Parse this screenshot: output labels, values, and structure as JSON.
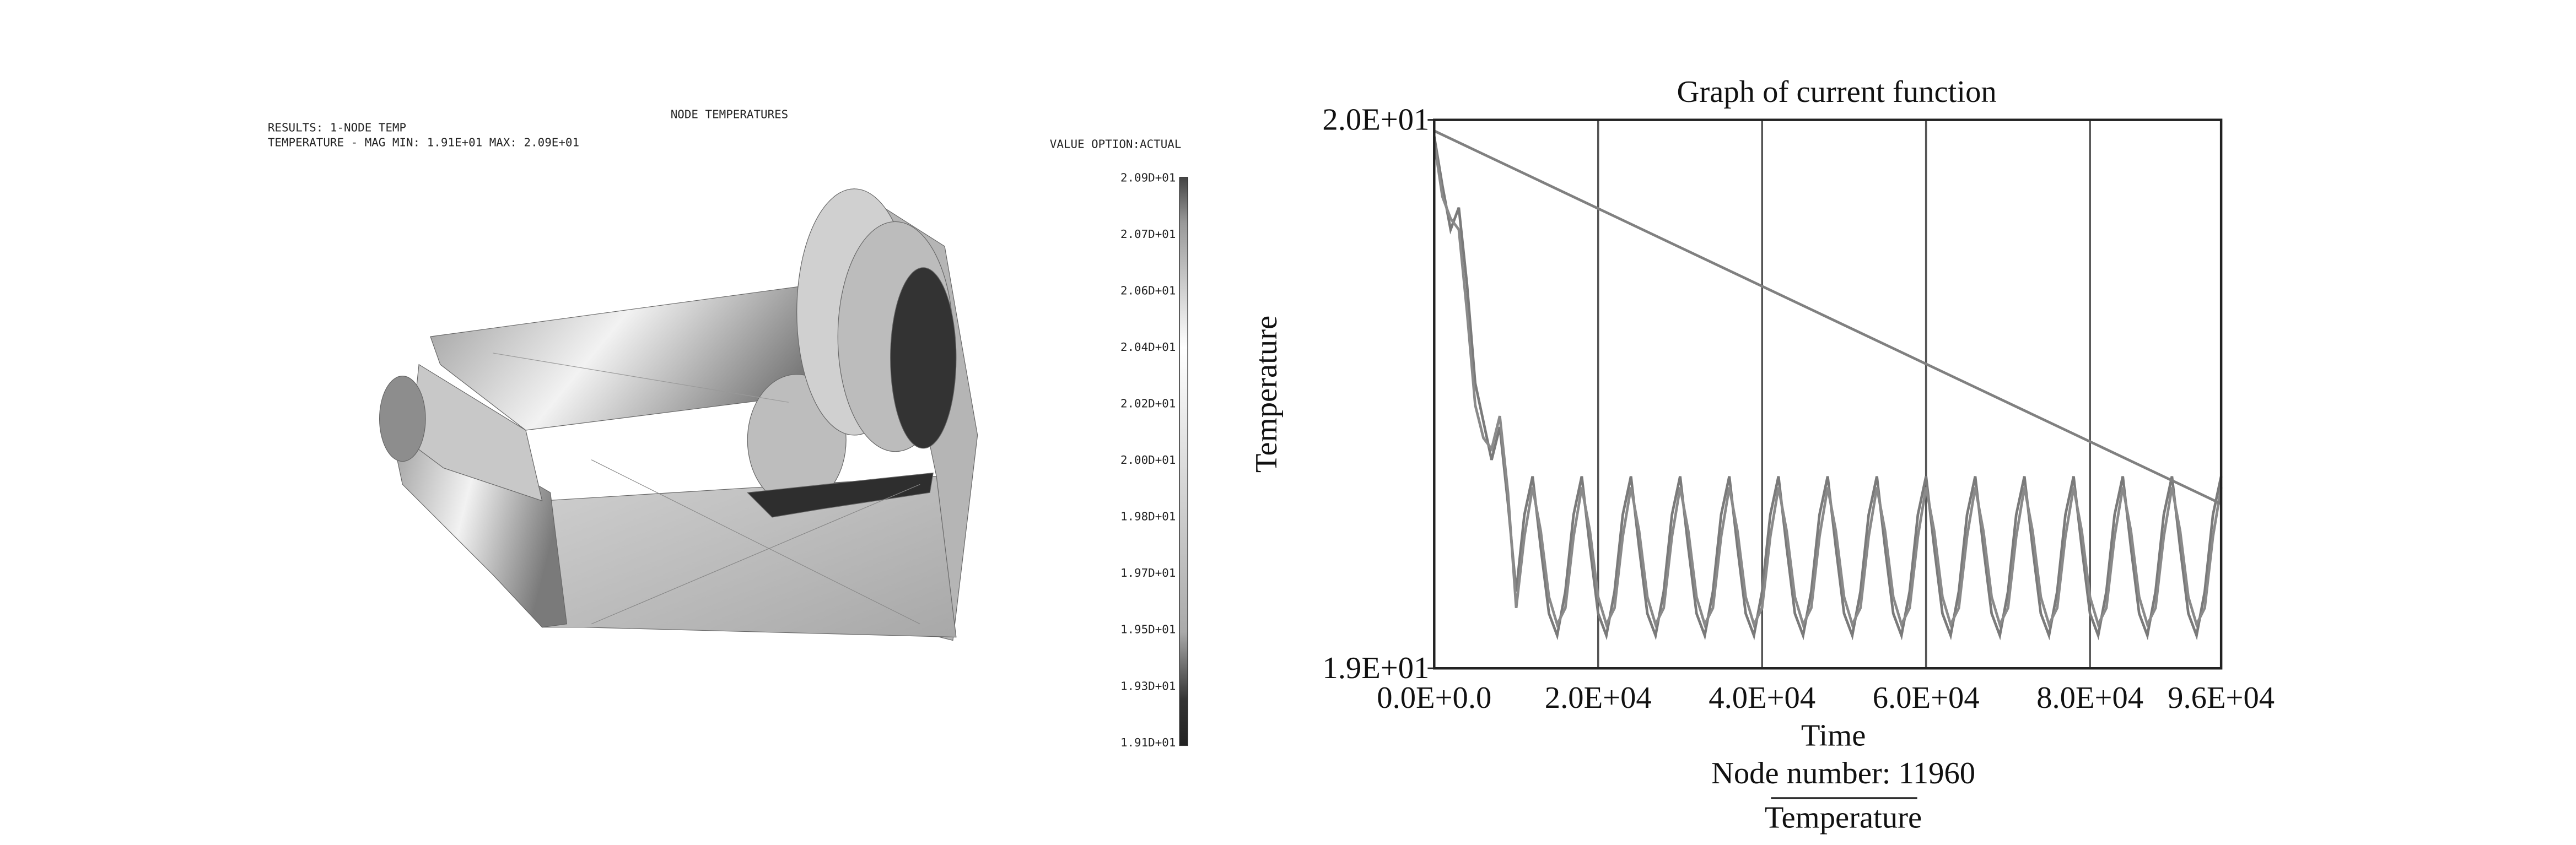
{
  "fem_view": {
    "title": "NODE TEMPERATURES",
    "results_line": "RESULTS: 1-NODE TEMP",
    "range_line": "TEMPERATURE - MAG MIN: 1.91E+01 MAX: 2.09E+01",
    "value_option": "VALUE OPTION:ACTUAL",
    "colorbar_labels": [
      "2.09D+01",
      "2.07D+01",
      "2.06D+01",
      "2.04D+01",
      "2.02D+01",
      "2.00D+01",
      "1.98D+01",
      "1.97D+01",
      "1.95D+01",
      "1.93D+01",
      "1.91D+01"
    ]
  },
  "chart_data": {
    "type": "line",
    "title": "Graph of current function",
    "x_label": "Time",
    "y_label": "Temperature",
    "footer": "Node number: 11960",
    "xlim": [
      0,
      96000
    ],
    "xticks": [
      {
        "value": 0,
        "label": "0.0E+0.0"
      },
      {
        "value": 20000,
        "label": "2.0E+04"
      },
      {
        "value": 40000,
        "label": "4.0E+04"
      },
      {
        "value": 60000,
        "label": "6.0E+04"
      },
      {
        "value": 80000,
        "label": "8.0E+04"
      },
      {
        "value": 96000,
        "label": "9.6E+04"
      }
    ],
    "ylim": [
      19,
      20
    ],
    "yticks": [
      {
        "value": 19,
        "label": "1.9E+01"
      },
      {
        "value": 20,
        "label": "2.0E+01"
      }
    ],
    "xgrid": true,
    "series": [
      {
        "name": "Temperature",
        "color": "#7a7a7a",
        "x": [
          0,
          1000,
          2000,
          3000,
          4000,
          5000,
          6000,
          7000,
          8000,
          9000,
          10000,
          11000,
          12000,
          13000,
          14000,
          15000,
          16000,
          17000,
          18000,
          19000,
          20000,
          21000,
          22000,
          23000,
          24000,
          25000,
          26000,
          27000,
          28000,
          29000,
          30000,
          31000,
          32000,
          33000,
          34000,
          35000,
          36000,
          37000,
          38000,
          39000,
          40000,
          41000,
          42000,
          43000,
          44000,
          45000,
          46000,
          47000,
          48000,
          49000,
          50000,
          51000,
          52000,
          53000,
          54000,
          55000,
          56000,
          57000,
          58000,
          59000,
          60000,
          61000,
          62000,
          63000,
          64000,
          65000,
          66000,
          67000,
          68000,
          69000,
          70000,
          71000,
          72000,
          73000,
          74000,
          75000,
          76000,
          77000,
          78000,
          79000,
          80000,
          81000,
          82000,
          83000,
          84000,
          85000,
          86000,
          87000,
          88000,
          89000,
          90000,
          91000,
          92000,
          93000,
          94000,
          95000,
          96000
        ],
        "values": [
          19.97,
          19.88,
          19.8,
          19.84,
          19.7,
          19.52,
          19.45,
          19.38,
          19.44,
          19.3,
          19.14,
          19.28,
          19.35,
          19.22,
          19.1,
          19.06,
          19.14,
          19.28,
          19.35,
          19.22,
          19.1,
          19.06,
          19.14,
          19.28,
          19.35,
          19.22,
          19.1,
          19.06,
          19.14,
          19.28,
          19.35,
          19.22,
          19.1,
          19.06,
          19.14,
          19.28,
          19.35,
          19.22,
          19.1,
          19.06,
          19.14,
          19.28,
          19.35,
          19.22,
          19.1,
          19.06,
          19.14,
          19.28,
          19.35,
          19.22,
          19.1,
          19.06,
          19.14,
          19.28,
          19.35,
          19.22,
          19.1,
          19.06,
          19.14,
          19.28,
          19.35,
          19.22,
          19.1,
          19.06,
          19.14,
          19.28,
          19.35,
          19.22,
          19.1,
          19.06,
          19.14,
          19.28,
          19.35,
          19.22,
          19.1,
          19.06,
          19.14,
          19.28,
          19.35,
          19.22,
          19.1,
          19.06,
          19.14,
          19.28,
          19.35,
          19.22,
          19.1,
          19.06,
          19.14,
          19.28,
          19.35,
          19.22,
          19.1,
          19.06,
          19.14,
          19.28,
          19.35
        ]
      },
      {
        "color": "#8a8a8a",
        "x": [
          0,
          1000,
          2000,
          3000,
          4000,
          5000,
          6000,
          7000,
          8000,
          9000,
          10000,
          11000,
          12000,
          13000,
          14000,
          15000,
          16000,
          17000,
          18000,
          19000,
          20000,
          21000,
          22000,
          23000,
          24000,
          25000,
          26000,
          27000,
          28000,
          29000,
          30000,
          31000,
          32000,
          33000,
          34000,
          35000,
          36000,
          37000,
          38000,
          39000,
          40000,
          41000,
          42000,
          43000,
          44000,
          45000,
          46000,
          47000,
          48000,
          49000,
          50000,
          51000,
          52000,
          53000,
          54000,
          55000,
          56000,
          57000,
          58000,
          59000,
          60000,
          61000,
          62000,
          63000,
          64000,
          65000,
          66000,
          67000,
          68000,
          69000,
          70000,
          71000,
          72000,
          73000,
          74000,
          75000,
          76000,
          77000,
          78000,
          79000,
          80000,
          81000,
          82000,
          83000,
          84000,
          85000,
          86000,
          87000,
          88000,
          89000,
          90000,
          91000,
          92000,
          93000,
          94000,
          95000,
          96000
        ],
        "values": [
          19.96,
          19.86,
          19.82,
          19.8,
          19.65,
          19.48,
          19.42,
          19.4,
          19.46,
          19.32,
          19.11,
          19.24,
          19.33,
          19.25,
          19.13,
          19.08,
          19.11,
          19.24,
          19.33,
          19.25,
          19.13,
          19.08,
          19.11,
          19.24,
          19.33,
          19.25,
          19.13,
          19.08,
          19.11,
          19.24,
          19.33,
          19.25,
          19.13,
          19.08,
          19.11,
          19.24,
          19.33,
          19.25,
          19.13,
          19.08,
          19.11,
          19.24,
          19.33,
          19.25,
          19.13,
          19.08,
          19.11,
          19.24,
          19.33,
          19.25,
          19.13,
          19.08,
          19.11,
          19.24,
          19.33,
          19.25,
          19.13,
          19.08,
          19.11,
          19.24,
          19.33,
          19.25,
          19.13,
          19.08,
          19.11,
          19.24,
          19.33,
          19.25,
          19.13,
          19.08,
          19.11,
          19.24,
          19.33,
          19.25,
          19.13,
          19.08,
          19.11,
          19.24,
          19.33,
          19.25,
          19.13,
          19.08,
          19.11,
          19.24,
          19.33,
          19.25,
          19.13,
          19.08,
          19.11,
          19.24,
          19.33,
          19.25,
          19.13,
          19.08,
          19.11,
          19.24,
          19.33
        ]
      },
      {
        "color": "#808080",
        "x": [
          0,
          96000
        ],
        "values": [
          19.98,
          19.3
        ]
      }
    ]
  }
}
